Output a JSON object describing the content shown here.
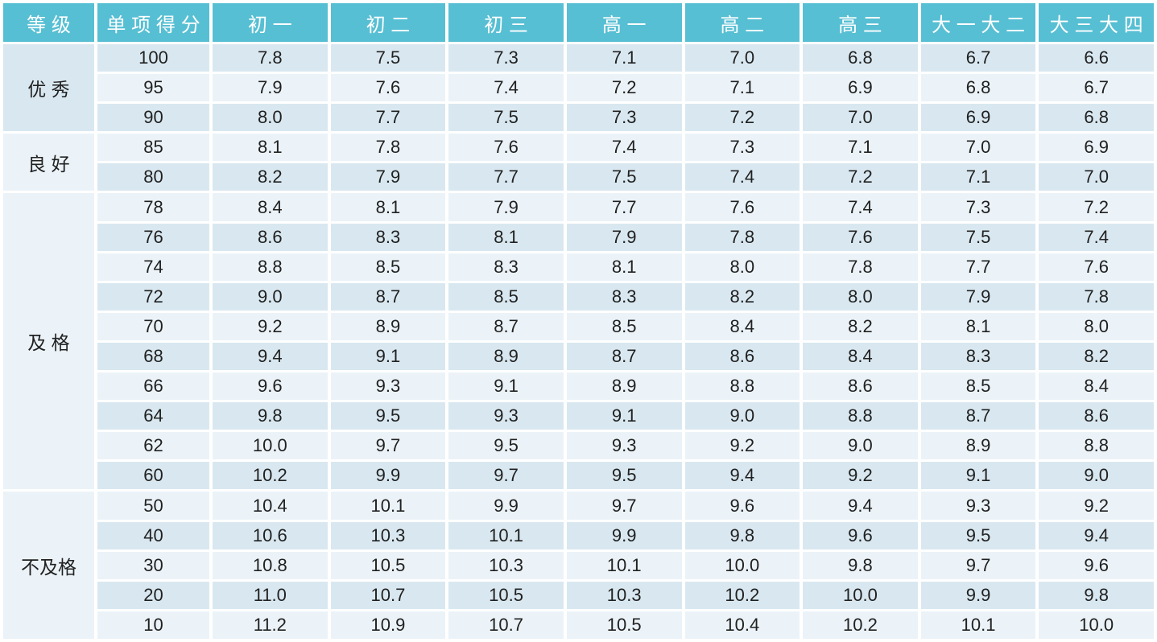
{
  "colors": {
    "header_bg": "#57bfd3",
    "header_text": "#ffffff",
    "row_dark": "#d9e8f0",
    "row_light": "#ebf3f8",
    "text": "#212121",
    "background": "#ffffff"
  },
  "chart_data": {
    "type": "table",
    "columns": [
      "等级",
      "单项得分",
      "初一",
      "初二",
      "初三",
      "高一",
      "高二",
      "高三",
      "大一大二",
      "大三大四"
    ],
    "row_groups": [
      {
        "grade": "优 秀",
        "shade": "dark",
        "rows": [
          {
            "score": "100",
            "values": [
              "7.8",
              "7.5",
              "7.3",
              "7.1",
              "7.0",
              "6.8",
              "6.7",
              "6.6"
            ]
          },
          {
            "score": "95",
            "values": [
              "7.9",
              "7.6",
              "7.4",
              "7.2",
              "7.1",
              "6.9",
              "6.8",
              "6.7"
            ]
          },
          {
            "score": "90",
            "values": [
              "8.0",
              "7.7",
              "7.5",
              "7.3",
              "7.2",
              "7.0",
              "6.9",
              "6.8"
            ]
          }
        ]
      },
      {
        "grade": "良 好",
        "shade": "light",
        "rows": [
          {
            "score": "85",
            "values": [
              "8.1",
              "7.8",
              "7.6",
              "7.4",
              "7.3",
              "7.1",
              "7.0",
              "6.9"
            ]
          },
          {
            "score": "80",
            "values": [
              "8.2",
              "7.9",
              "7.7",
              "7.5",
              "7.4",
              "7.2",
              "7.1",
              "7.0"
            ]
          }
        ]
      },
      {
        "grade": "及 格",
        "shade": "light",
        "rows": [
          {
            "score": "78",
            "values": [
              "8.4",
              "8.1",
              "7.9",
              "7.7",
              "7.6",
              "7.4",
              "7.3",
              "7.2"
            ]
          },
          {
            "score": "76",
            "values": [
              "8.6",
              "8.3",
              "8.1",
              "7.9",
              "7.8",
              "7.6",
              "7.5",
              "7.4"
            ]
          },
          {
            "score": "74",
            "values": [
              "8.8",
              "8.5",
              "8.3",
              "8.1",
              "8.0",
              "7.8",
              "7.7",
              "7.6"
            ]
          },
          {
            "score": "72",
            "values": [
              "9.0",
              "8.7",
              "8.5",
              "8.3",
              "8.2",
              "8.0",
              "7.9",
              "7.8"
            ]
          },
          {
            "score": "70",
            "values": [
              "9.2",
              "8.9",
              "8.7",
              "8.5",
              "8.4",
              "8.2",
              "8.1",
              "8.0"
            ]
          },
          {
            "score": "68",
            "values": [
              "9.4",
              "9.1",
              "8.9",
              "8.7",
              "8.6",
              "8.4",
              "8.3",
              "8.2"
            ]
          },
          {
            "score": "66",
            "values": [
              "9.6",
              "9.3",
              "9.1",
              "8.9",
              "8.8",
              "8.6",
              "8.5",
              "8.4"
            ]
          },
          {
            "score": "64",
            "values": [
              "9.8",
              "9.5",
              "9.3",
              "9.1",
              "9.0",
              "8.8",
              "8.7",
              "8.6"
            ]
          },
          {
            "score": "62",
            "values": [
              "10.0",
              "9.7",
              "9.5",
              "9.3",
              "9.2",
              "9.0",
              "8.9",
              "8.8"
            ]
          },
          {
            "score": "60",
            "values": [
              "10.2",
              "9.9",
              "9.7",
              "9.5",
              "9.4",
              "9.2",
              "9.1",
              "9.0"
            ]
          }
        ]
      },
      {
        "grade": "不及格",
        "shade": "light",
        "rows": [
          {
            "score": "50",
            "values": [
              "10.4",
              "10.1",
              "9.9",
              "9.7",
              "9.6",
              "9.4",
              "9.3",
              "9.2"
            ]
          },
          {
            "score": "40",
            "values": [
              "10.6",
              "10.3",
              "10.1",
              "9.9",
              "9.8",
              "9.6",
              "9.5",
              "9.4"
            ]
          },
          {
            "score": "30",
            "values": [
              "10.8",
              "10.5",
              "10.3",
              "10.1",
              "10.0",
              "9.8",
              "9.7",
              "9.6"
            ]
          },
          {
            "score": "20",
            "values": [
              "11.0",
              "10.7",
              "10.5",
              "10.3",
              "10.2",
              "10.0",
              "9.9",
              "9.8"
            ]
          },
          {
            "score": "10",
            "values": [
              "11.2",
              "10.9",
              "10.7",
              "10.5",
              "10.4",
              "10.2",
              "10.1",
              "10.0"
            ]
          }
        ]
      }
    ]
  }
}
